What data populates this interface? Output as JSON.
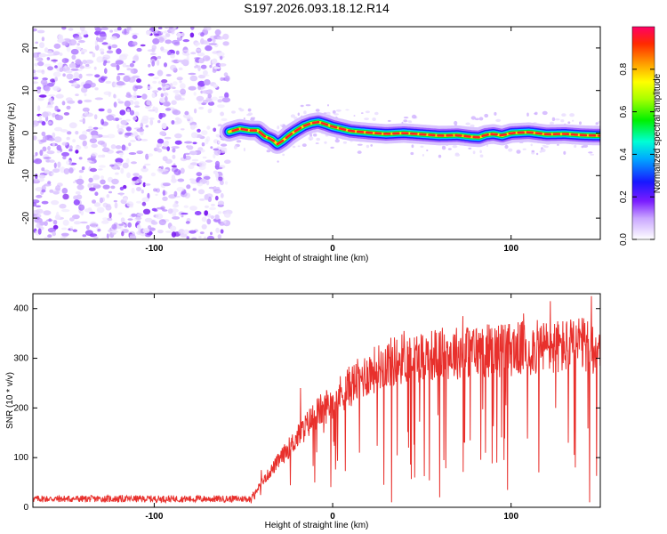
{
  "title": "S197.2026.093.18.12.R14",
  "chart_data": [
    {
      "type": "heatmap",
      "title": "",
      "xlabel": "Height of straight line (km)",
      "ylabel": "Frequency (Hz)",
      "xlim": [
        -168,
        150
      ],
      "ylim": [
        -25,
        25
      ],
      "x_ticks": [
        -100,
        0,
        100
      ],
      "x_tick_labels": [
        "-100",
        "0",
        "100"
      ],
      "y_ticks": [
        -20,
        -10,
        0,
        10,
        20
      ],
      "y_tick_labels": [
        "-20",
        "-10",
        "0",
        "10",
        "20"
      ],
      "noise_region": {
        "x_from": -168,
        "x_to": -58,
        "y_from": -25,
        "y_to": 25
      },
      "signal_trace": {
        "x": [
          -58,
          -52,
          -46,
          -42,
          -38,
          -34,
          -31,
          -28,
          -24,
          -20,
          -16,
          -12,
          -8,
          -4,
          0,
          5,
          10,
          20,
          30,
          40,
          50,
          60,
          70,
          78,
          82,
          86,
          90,
          95,
          100,
          110,
          120,
          130,
          140,
          150
        ],
        "y": [
          0.3,
          1.0,
          0.6,
          0.6,
          -0.8,
          -1.5,
          -2.6,
          -1.8,
          -0.4,
          0.7,
          1.7,
          2.3,
          2.6,
          2.1,
          1.5,
          1.0,
          0.5,
          0.1,
          -0.2,
          0.0,
          -0.3,
          -0.6,
          -0.5,
          -0.9,
          -1.0,
          -0.4,
          -0.2,
          -0.6,
          0.0,
          0.2,
          -0.3,
          -0.2,
          -0.5,
          -0.6
        ]
      },
      "colorbar": {
        "label": "Normalized spectral amplitude",
        "range": [
          0.0,
          1.0
        ],
        "ticks": [
          0.0,
          0.2,
          0.4,
          0.6,
          0.8
        ],
        "tick_labels": [
          "0.0",
          "0.2",
          "0.4",
          "0.6",
          "0.8"
        ]
      }
    },
    {
      "type": "line",
      "title": "",
      "xlabel": "Height of straight line (km)",
      "ylabel": "SNR (10 * v/v)",
      "xlim": [
        -168,
        150
      ],
      "ylim": [
        0,
        430
      ],
      "x_ticks": [
        -100,
        0,
        100
      ],
      "x_tick_labels": [
        "-100",
        "0",
        "100"
      ],
      "y_ticks": [
        0,
        100,
        200,
        300,
        400
      ],
      "y_tick_labels": [
        "0",
        "100",
        "200",
        "300",
        "400"
      ],
      "series": [
        {
          "name": "SNR",
          "color": "#e8302c",
          "baseline_x": [
            -168,
            -46,
            -44,
            -40,
            -30,
            -20,
            -10,
            0,
            10,
            20,
            30,
            40,
            60,
            80,
            100,
            120,
            140,
            150
          ],
          "baseline_y": [
            17,
            17,
            30,
            48,
            95,
            140,
            185,
            215,
            245,
            270,
            290,
            300,
            308,
            315,
            318,
            322,
            325,
            325
          ],
          "peaks_x": [
            -40,
            -18,
            40,
            73,
            107,
            122,
            138,
            145
          ],
          "peaks_y": [
            75,
            240,
            355,
            385,
            390,
            415,
            380,
            425
          ],
          "dips_x": [
            -5,
            15,
            33,
            46,
            60,
            74,
            92,
            98,
            125,
            136,
            144
          ],
          "dips_y": [
            150,
            110,
            10,
            60,
            20,
            130,
            90,
            35,
            200,
            80,
            10
          ]
        }
      ]
    }
  ]
}
